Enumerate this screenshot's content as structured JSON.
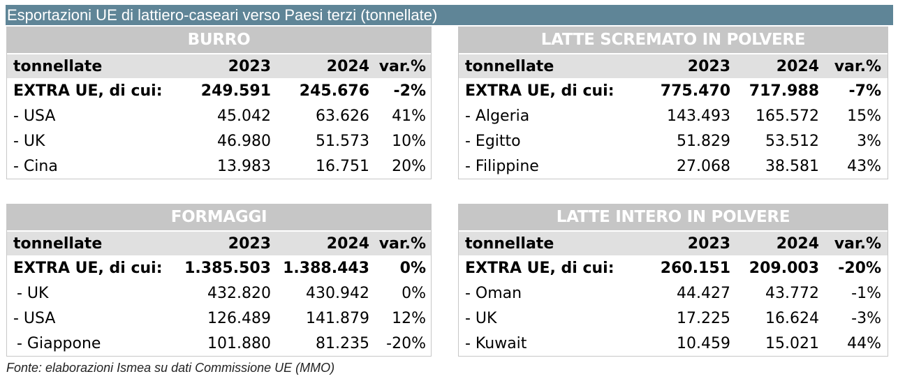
{
  "title": "Esportazioni UE di lattiero-caseari verso Paesi terzi (tonnellate)",
  "header": {
    "label": "tonnellate",
    "y1": "2023",
    "y2": "2024",
    "var": "var.%"
  },
  "tables": {
    "burro": {
      "title": "BURRO",
      "rows": [
        {
          "name": "EXTRA UE, di cui:",
          "v2023": "249.591",
          "v2024": "245.676",
          "var": "-2%"
        },
        {
          "name": "- USA",
          "v2023": "45.042",
          "v2024": "63.626",
          "var": "41%"
        },
        {
          "name": "- UK",
          "v2023": "46.980",
          "v2024": "51.573",
          "var": "10%"
        },
        {
          "name": "- Cina",
          "v2023": "13.983",
          "v2024": "16.751",
          "var": "20%"
        }
      ]
    },
    "latte_scremato": {
      "title": "LATTE SCREMATO IN POLVERE",
      "rows": [
        {
          "name": "EXTRA UE, di cui:",
          "v2023": "775.470",
          "v2024": "717.988",
          "var": "-7%"
        },
        {
          "name": "- Algeria",
          "v2023": "143.493",
          "v2024": "165.572",
          "var": "15%"
        },
        {
          "name": "- Egitto",
          "v2023": "51.829",
          "v2024": "53.512",
          "var": "3%"
        },
        {
          "name": "- Filippine",
          "v2023": "27.068",
          "v2024": "38.581",
          "var": "43%"
        }
      ]
    },
    "formaggi": {
      "title": "FORMAGGI",
      "rows": [
        {
          "name": "EXTRA UE, di cui:",
          "v2023": "1.385.503",
          "v2024": "1.388.443",
          "var": "0%"
        },
        {
          "name": " - UK",
          "v2023": "432.820",
          "v2024": "430.942",
          "var": "0%"
        },
        {
          "name": "- USA",
          "v2023": "126.489",
          "v2024": "141.879",
          "var": "12%"
        },
        {
          "name": " - Giappone",
          "v2023": "101.880",
          "v2024": "81.235",
          "var": "-20%"
        }
      ]
    },
    "latte_intero": {
      "title": "LATTE INTERO IN POLVERE",
      "rows": [
        {
          "name": "EXTRA UE, di cui:",
          "v2023": "260.151",
          "v2024": "209.003",
          "var": "-20%"
        },
        {
          "name": "- Oman",
          "v2023": "44.427",
          "v2024": "43.772",
          "var": "-1%"
        },
        {
          "name": "- UK",
          "v2023": "17.225",
          "v2024": "16.624",
          "var": "-3%"
        },
        {
          "name": "- Kuwait",
          "v2023": "10.459",
          "v2024": "15.021",
          "var": "44%"
        }
      ]
    }
  },
  "footnote": "Fonte: elaborazioni Ismea su dati Commissione UE (MMO)"
}
